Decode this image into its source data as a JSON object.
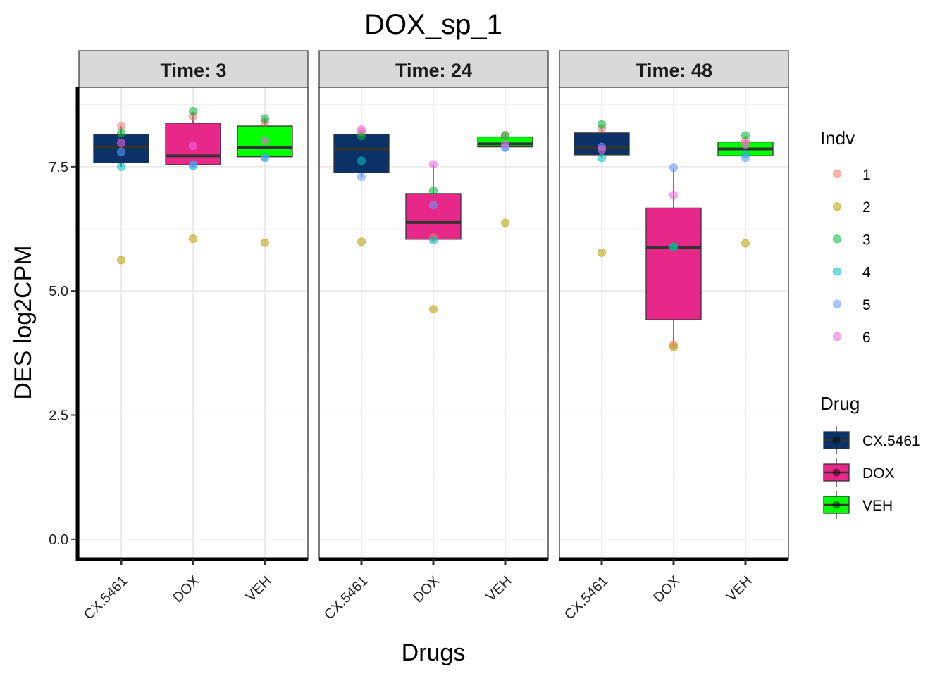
{
  "chart_data": {
    "type": "boxplot",
    "title": "DOX_sp_1",
    "xlabel": "Drugs",
    "ylabel": "DES  log2CPM",
    "ylim": [
      -0.4,
      9.1
    ],
    "yticks": [
      0.0,
      2.5,
      5.0,
      7.5
    ],
    "ytick_labels": [
      "0.0",
      "2.5",
      "5.0",
      "7.5"
    ],
    "categories": [
      "CX.5461",
      "DOX",
      "VEH"
    ],
    "grid": true,
    "legend_position": "right",
    "panels": [
      {
        "label": "Time: 3",
        "boxes": [
          {
            "drug": "CX.5461",
            "q1": 7.58,
            "median": 7.9,
            "q3": 8.15,
            "whisker_low": 7.5,
            "whisker_high": 8.32,
            "points": [
              {
                "indv": "1",
                "y": 8.32
              },
              {
                "indv": "2",
                "y": 5.62
              },
              {
                "indv": "3",
                "y": 8.18
              },
              {
                "indv": "4",
                "y": 7.5
              },
              {
                "indv": "5",
                "y": 7.8
              },
              {
                "indv": "6",
                "y": 7.98
              }
            ]
          },
          {
            "drug": "DOX",
            "q1": 7.54,
            "median": 7.72,
            "q3": 8.38,
            "whisker_low": 7.5,
            "whisker_high": 8.6,
            "points": [
              {
                "indv": "1",
                "y": 8.52
              },
              {
                "indv": "2",
                "y": 6.05
              },
              {
                "indv": "3",
                "y": 8.62
              },
              {
                "indv": "4",
                "y": 7.52
              },
              {
                "indv": "5",
                "y": 7.55
              },
              {
                "indv": "6",
                "y": 7.92
              }
            ]
          },
          {
            "drug": "VEH",
            "q1": 7.7,
            "median": 7.88,
            "q3": 8.32,
            "whisker_low": 7.68,
            "whisker_high": 8.48,
            "points": [
              {
                "indv": "1",
                "y": 8.4
              },
              {
                "indv": "2",
                "y": 5.97
              },
              {
                "indv": "3",
                "y": 8.47
              },
              {
                "indv": "4",
                "y": 7.7
              },
              {
                "indv": "5",
                "y": 7.68
              },
              {
                "indv": "6",
                "y": 8.02
              }
            ]
          }
        ]
      },
      {
        "label": "Time: 24",
        "boxes": [
          {
            "drug": "CX.5461",
            "q1": 7.38,
            "median": 7.86,
            "q3": 8.15,
            "whisker_low": 7.28,
            "whisker_high": 8.25,
            "points": [
              {
                "indv": "1",
                "y": 8.2
              },
              {
                "indv": "2",
                "y": 5.99
              },
              {
                "indv": "3",
                "y": 8.12
              },
              {
                "indv": "4",
                "y": 7.62
              },
              {
                "indv": "5",
                "y": 7.3
              },
              {
                "indv": "6",
                "y": 8.25
              }
            ]
          },
          {
            "drug": "DOX",
            "q1": 6.04,
            "median": 6.38,
            "q3": 6.96,
            "whisker_low": 6.0,
            "whisker_high": 7.55,
            "points": [
              {
                "indv": "1",
                "y": 6.08
              },
              {
                "indv": "2",
                "y": 4.63
              },
              {
                "indv": "3",
                "y": 7.02
              },
              {
                "indv": "4",
                "y": 6.02
              },
              {
                "indv": "5",
                "y": 6.73
              },
              {
                "indv": "6",
                "y": 7.55
              }
            ]
          },
          {
            "drug": "VEH",
            "q1": 7.9,
            "median": 7.96,
            "q3": 8.1,
            "whisker_low": 7.86,
            "whisker_high": 8.15,
            "points": [
              {
                "indv": "1",
                "y": 8.14
              },
              {
                "indv": "2",
                "y": 6.37
              },
              {
                "indv": "3",
                "y": 8.12
              },
              {
                "indv": "4",
                "y": 7.9
              },
              {
                "indv": "5",
                "y": 7.88
              },
              {
                "indv": "6",
                "y": 7.95
              }
            ]
          }
        ]
      },
      {
        "label": "Time: 48",
        "boxes": [
          {
            "drug": "CX.5461",
            "q1": 7.74,
            "median": 7.88,
            "q3": 8.18,
            "whisker_low": 7.68,
            "whisker_high": 8.35,
            "points": [
              {
                "indv": "1",
                "y": 8.27
              },
              {
                "indv": "2",
                "y": 5.77
              },
              {
                "indv": "3",
                "y": 8.35
              },
              {
                "indv": "4",
                "y": 7.68
              },
              {
                "indv": "5",
                "y": 7.9
              },
              {
                "indv": "6",
                "y": 7.85
              }
            ]
          },
          {
            "drug": "DOX",
            "q1": 4.42,
            "median": 5.88,
            "q3": 6.67,
            "whisker_low": 3.87,
            "whisker_high": 7.48,
            "points": [
              {
                "indv": "1",
                "y": 3.92
              },
              {
                "indv": "2",
                "y": 3.87
              },
              {
                "indv": "3",
                "y": 5.9
              },
              {
                "indv": "4",
                "y": 5.88
              },
              {
                "indv": "5",
                "y": 7.48
              },
              {
                "indv": "6",
                "y": 6.93
              }
            ]
          },
          {
            "drug": "VEH",
            "q1": 7.72,
            "median": 7.86,
            "q3": 8.0,
            "whisker_low": 7.68,
            "whisker_high": 8.13,
            "points": [
              {
                "indv": "1",
                "y": 8.02
              },
              {
                "indv": "2",
                "y": 5.96
              },
              {
                "indv": "3",
                "y": 8.13
              },
              {
                "indv": "4",
                "y": 7.75
              },
              {
                "indv": "5",
                "y": 7.68
              },
              {
                "indv": "6",
                "y": 7.95
              }
            ]
          }
        ]
      }
    ],
    "legend_indv": {
      "title": "Indv",
      "items": [
        {
          "label": "1",
          "color": "#F8766D"
        },
        {
          "label": "2",
          "color": "#B79F00"
        },
        {
          "label": "3",
          "color": "#00BA38"
        },
        {
          "label": "4",
          "color": "#00BFC4"
        },
        {
          "label": "5",
          "color": "#619CFF"
        },
        {
          "label": "6",
          "color": "#F564E3"
        }
      ]
    },
    "legend_drug": {
      "title": "Drug",
      "items": [
        {
          "label": "CX.5461",
          "color": "#0A3269"
        },
        {
          "label": "DOX",
          "color": "#E72889"
        },
        {
          "label": "VEH",
          "color": "#00FF00"
        }
      ]
    }
  }
}
